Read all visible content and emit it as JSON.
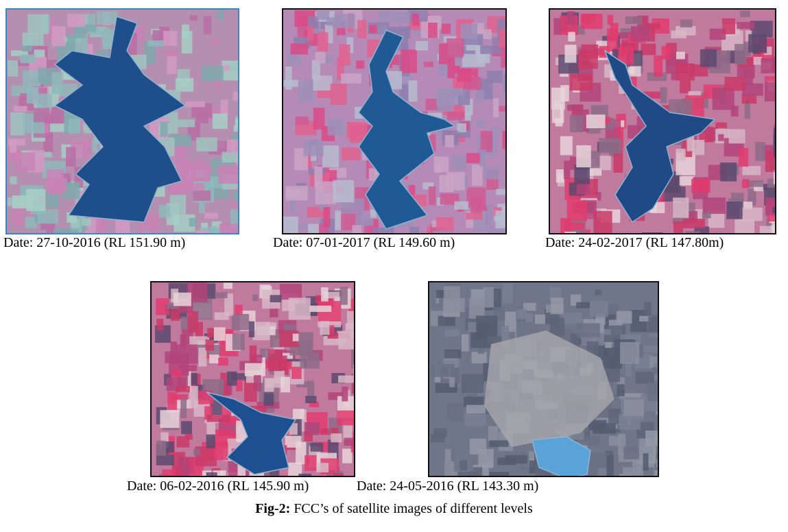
{
  "figure": {
    "panels": [
      {
        "caption": "Date: 27-10-2016 (RL 151.90 m)"
      },
      {
        "caption": "Date: 07-01-2017 (RL 149.60 m)"
      },
      {
        "caption": "Date: 24-02-2017 (RL 147.80m)"
      },
      {
        "caption": "Date: 06-02-2016 (RL 145.90 m)"
      },
      {
        "caption": "Date: 24-05-2016 (RL 143.30 m)"
      }
    ],
    "label": "Fig-2:",
    "text": "FCC’s of satellite images of different levels"
  }
}
